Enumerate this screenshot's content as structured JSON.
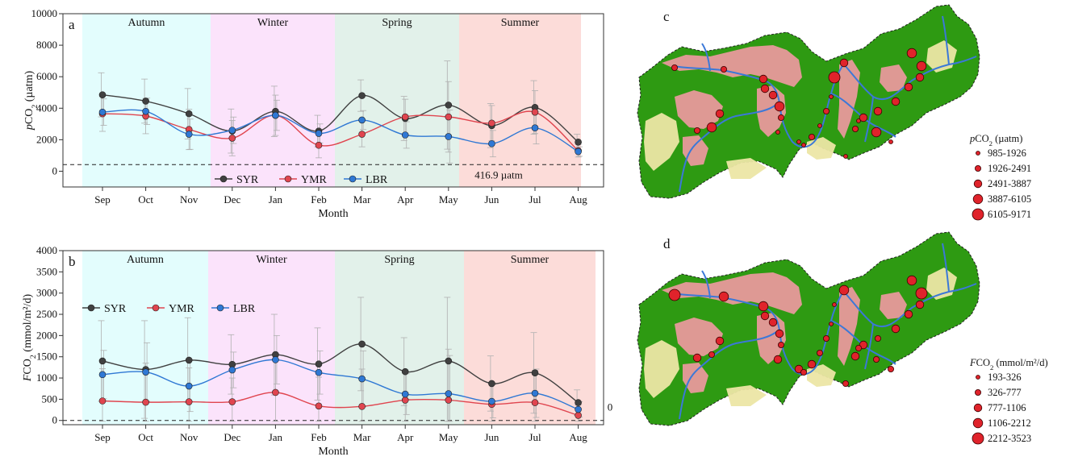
{
  "months": [
    "Sep",
    "Oct",
    "Nov",
    "Dec",
    "Jan",
    "Feb",
    "Mar",
    "Apr",
    "May",
    "Jun",
    "Jul",
    "Aug"
  ],
  "colors": {
    "SYR": "#404040",
    "YMR": "#e0454f",
    "LBR": "#2f78d4",
    "autumn": "#e3fdfd",
    "winter": "#fbe3fb",
    "spring": "#e2f1ea",
    "summer": "#fcdcd9",
    "marker": "#e0232b",
    "forest": "#2e9a12",
    "crop": "#ece6a5",
    "urban": "#e8999c",
    "river": "#3b78d8"
  },
  "chart_data": [
    {
      "type": "line",
      "panel": "a",
      "categories": [
        "Sep",
        "Oct",
        "Nov",
        "Dec",
        "Jan",
        "Feb",
        "Mar",
        "Apr",
        "May",
        "Jun",
        "Jul",
        "Aug"
      ],
      "seasons": [
        "Autumn",
        "Winter",
        "Spring",
        "Summer"
      ],
      "series": [
        {
          "name": "SYR",
          "values": [
            4850,
            4450,
            3650,
            2550,
            3800,
            2550,
            4800,
            3350,
            4200,
            2900,
            4050,
            1850
          ]
        },
        {
          "name": "YMR",
          "values": [
            3650,
            3500,
            2650,
            2100,
            3550,
            1650,
            2350,
            3450,
            3450,
            3050,
            3750,
            1300
          ]
        },
        {
          "name": "LBR",
          "values": [
            3750,
            3800,
            2350,
            2600,
            3550,
            2400,
            3250,
            2300,
            2200,
            1750,
            2750,
            1250
          ]
        }
      ],
      "errors": [
        1400,
        1400,
        1600,
        1400,
        1600,
        1000,
        1000,
        1400,
        2800,
        1400,
        1700,
        500
      ],
      "reference_line": {
        "value": 416.9,
        "label": "416.9 µatm"
      },
      "xlabel": "Month",
      "ylabel_pre": "p",
      "ylabel_main": "CO",
      "ylabel_sub": "2",
      "ylabel_unit": " (µatm)",
      "ylim": [
        -1000,
        10000
      ],
      "yticks": [
        0,
        2000,
        4000,
        6000,
        8000,
        10000
      ],
      "legend_position": "bottom-left"
    },
    {
      "type": "line",
      "panel": "b",
      "categories": [
        "Sep",
        "Oct",
        "Nov",
        "Dec",
        "Jan",
        "Feb",
        "Mar",
        "Apr",
        "May",
        "Jun",
        "Jul",
        "Aug"
      ],
      "seasons": [
        "Autumn",
        "Winter",
        "Spring",
        "Summer"
      ],
      "series": [
        {
          "name": "SYR",
          "values": [
            1400,
            1200,
            1420,
            1320,
            1550,
            1330,
            1800,
            1150,
            1400,
            870,
            1120,
            420
          ]
        },
        {
          "name": "YMR",
          "values": [
            460,
            430,
            440,
            440,
            660,
            340,
            330,
            480,
            480,
            380,
            420,
            120
          ]
        },
        {
          "name": "LBR",
          "values": [
            1080,
            1140,
            810,
            1190,
            1430,
            1130,
            980,
            620,
            630,
            450,
            640,
            260
          ]
        }
      ],
      "errors": [
        950,
        1150,
        1000,
        700,
        950,
        850,
        1100,
        800,
        1500,
        650,
        950,
        300
      ],
      "reference_line": {
        "value": 0,
        "label": "0"
      },
      "xlabel": "Month",
      "ylabel_pre": "F",
      "ylabel_main": "CO",
      "ylabel_sub": "2",
      "ylabel_unit": " (mmol/m²/d)",
      "ylim": [
        -100,
        4000
      ],
      "yticks": [
        0,
        500,
        1000,
        1500,
        2000,
        2500,
        3000,
        3500,
        4000
      ],
      "legend_position": "top-left"
    }
  ],
  "maps": [
    {
      "panel": "c",
      "legend_title_pre": "p",
      "legend_title_main": "CO",
      "legend_title_sub": "2",
      "legend_title_unit": " (µatm)",
      "classes": [
        "985-1926",
        "1926-2491",
        "2491-3887",
        "3887-6105",
        "6105-9171"
      ],
      "sites": [
        [
          1,
          4
        ],
        [
          1,
          3
        ],
        [
          2,
          3
        ],
        [
          2,
          2
        ],
        [
          2,
          2
        ],
        [
          3,
          2
        ],
        [
          1,
          1
        ],
        [
          0,
          1
        ],
        [
          2,
          1
        ],
        [
          3,
          1
        ],
        [
          1,
          2
        ],
        [
          0,
          0
        ],
        [
          0,
          0
        ],
        [
          1,
          2
        ],
        [
          0,
          1
        ],
        [
          1,
          1
        ],
        [
          0,
          0
        ],
        [
          4,
          0
        ],
        [
          2,
          0
        ],
        [
          1,
          1
        ],
        [
          2,
          1
        ],
        [
          2,
          1
        ],
        [
          3,
          1
        ],
        [
          0,
          1
        ],
        [
          0,
          1
        ],
        [
          0,
          1
        ],
        [
          2,
          2
        ],
        [
          2,
          2
        ],
        [
          2,
          2
        ],
        [
          3,
          3
        ],
        [
          3,
          3
        ]
      ]
    },
    {
      "panel": "d",
      "legend_title_pre": "F",
      "legend_title_main": "CO",
      "legend_title_sub": "2",
      "legend_title_unit": " (mmol/m²/d)",
      "classes": [
        "193-326",
        "326-777",
        "777-1106",
        "1106-2212",
        "2212-3523"
      ],
      "sites": [
        [
          4,
          4
        ],
        [
          3,
          3
        ],
        [
          3,
          3
        ],
        [
          3,
          2
        ],
        [
          1,
          2
        ],
        [
          1,
          2
        ],
        [
          1,
          1
        ],
        [
          2,
          2
        ],
        [
          2,
          2
        ],
        [
          2,
          1
        ],
        [
          3,
          2
        ],
        [
          1,
          2
        ],
        [
          0,
          1
        ],
        [
          2,
          2
        ],
        [
          1,
          1
        ],
        [
          2,
          1
        ],
        [
          1,
          0
        ],
        [
          4,
          0
        ],
        [
          3,
          3
        ],
        [
          2,
          2
        ],
        [
          2,
          2
        ],
        [
          2,
          1
        ],
        [
          3,
          1
        ],
        [
          0,
          1
        ],
        [
          0,
          1
        ],
        [
          0,
          1
        ],
        [
          2,
          2
        ],
        [
          2,
          2
        ],
        [
          2,
          2
        ],
        [
          3,
          3
        ],
        [
          4,
          4
        ]
      ]
    }
  ]
}
